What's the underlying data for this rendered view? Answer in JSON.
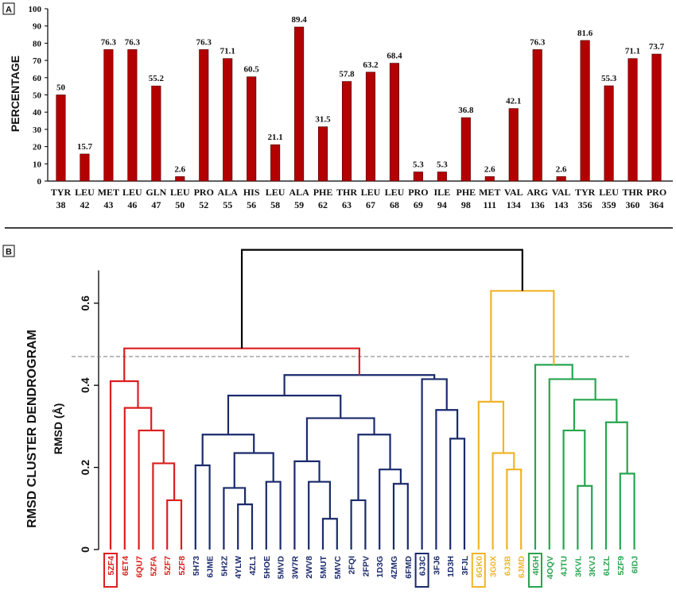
{
  "chart_data": [
    {
      "panel": "A",
      "type": "bar",
      "ylabel": "PERCENTAGE",
      "ylim": [
        0,
        100
      ],
      "yticks": [
        0,
        10,
        20,
        30,
        40,
        50,
        60,
        70,
        80,
        90,
        100
      ],
      "bar_color": "#b30000",
      "categories": [
        {
          "res": "TYR",
          "num": "38"
        },
        {
          "res": "LEU",
          "num": "42"
        },
        {
          "res": "MET",
          "num": "43"
        },
        {
          "res": "LEU",
          "num": "46"
        },
        {
          "res": "GLN",
          "num": "47"
        },
        {
          "res": "LEU",
          "num": "50"
        },
        {
          "res": "PRO",
          "num": "52"
        },
        {
          "res": "ALA",
          "num": "55"
        },
        {
          "res": "HIS",
          "num": "56"
        },
        {
          "res": "LEU",
          "num": "58"
        },
        {
          "res": "ALA",
          "num": "59"
        },
        {
          "res": "PHE",
          "num": "62"
        },
        {
          "res": "THR",
          "num": "63"
        },
        {
          "res": "LEU",
          "num": "67"
        },
        {
          "res": "LEU",
          "num": "68"
        },
        {
          "res": "PRO",
          "num": "69"
        },
        {
          "res": "ILE",
          "num": "94"
        },
        {
          "res": "PHE",
          "num": "98"
        },
        {
          "res": "MET",
          "num": "111"
        },
        {
          "res": "VAL",
          "num": "134"
        },
        {
          "res": "ARG",
          "num": "136"
        },
        {
          "res": "VAL",
          "num": "143"
        },
        {
          "res": "TYR",
          "num": "356"
        },
        {
          "res": "LEU",
          "num": "359"
        },
        {
          "res": "THR",
          "num": "360"
        },
        {
          "res": "PRO",
          "num": "364"
        }
      ],
      "values": [
        50,
        15.7,
        76.3,
        76.3,
        55.2,
        2.6,
        76.3,
        71.1,
        60.5,
        21.1,
        89.4,
        31.5,
        57.8,
        63.2,
        68.4,
        5.3,
        5.3,
        36.8,
        2.6,
        42.1,
        76.3,
        2.6,
        81.6,
        55.3,
        71.1,
        73.7
      ],
      "value_labels": [
        "50",
        "15.7",
        "76.3",
        "76.3",
        "55.2",
        "2.6",
        "76.3",
        "71.1",
        "60.5",
        "21.1",
        "89.4",
        "31.5",
        "57.8",
        "63.2",
        "68.4",
        "5.3",
        "5.3",
        "36.8",
        "2.6",
        "42.1",
        "76.3",
        "2.6",
        "81.6",
        "55.3",
        "71.1",
        "73.7"
      ]
    },
    {
      "panel": "B",
      "type": "dendrogram",
      "ylabel": "RMSD CLUSTER DENDROGRAM",
      "ylabel2": "RMSD (Å)",
      "ylim": [
        0,
        0.7
      ],
      "yticks": [
        0,
        0.2,
        0.4,
        0.6
      ],
      "ytick_labels": [
        "0",
        "0.2",
        "0.4",
        "0.6"
      ],
      "cutoff": 0.47,
      "colors": {
        "red": "#dc1e1e",
        "blue": "#1a2a6c",
        "yellow": "#f0b428",
        "green": "#28a550",
        "black": "#000000"
      },
      "leaves": [
        {
          "id": "5ZF4",
          "color": "red",
          "boxed": true
        },
        {
          "id": "6ET4",
          "color": "red"
        },
        {
          "id": "6QU7",
          "color": "red"
        },
        {
          "id": "5ZFA",
          "color": "red"
        },
        {
          "id": "5ZF7",
          "color": "red"
        },
        {
          "id": "5ZF8",
          "color": "red"
        },
        {
          "id": "5H73",
          "color": "blue"
        },
        {
          "id": "6JME",
          "color": "blue"
        },
        {
          "id": "5H2Z",
          "color": "blue"
        },
        {
          "id": "4YLW",
          "color": "blue"
        },
        {
          "id": "4ZL1",
          "color": "blue"
        },
        {
          "id": "5HOE",
          "color": "blue"
        },
        {
          "id": "5MVD",
          "color": "blue"
        },
        {
          "id": "3W7R",
          "color": "blue"
        },
        {
          "id": "2WV8",
          "color": "blue"
        },
        {
          "id": "5MUT",
          "color": "blue"
        },
        {
          "id": "5MVC",
          "color": "blue"
        },
        {
          "id": "2FQI",
          "color": "blue"
        },
        {
          "id": "2FPV",
          "color": "blue"
        },
        {
          "id": "1D3G",
          "color": "blue"
        },
        {
          "id": "4ZMG",
          "color": "blue"
        },
        {
          "id": "6FMD",
          "color": "blue"
        },
        {
          "id": "6J3C",
          "color": "blue",
          "boxed": true
        },
        {
          "id": "3FJ6",
          "color": "blue"
        },
        {
          "id": "1D3H",
          "color": "blue"
        },
        {
          "id": "3FJL",
          "color": "blue"
        },
        {
          "id": "6GK0",
          "color": "yellow",
          "boxed": true
        },
        {
          "id": "3G0X",
          "color": "yellow"
        },
        {
          "id": "6J3B",
          "color": "yellow"
        },
        {
          "id": "6JMD",
          "color": "yellow"
        },
        {
          "id": "4IGH",
          "color": "green",
          "boxed": true
        },
        {
          "id": "4OQV",
          "color": "green"
        },
        {
          "id": "4JTU",
          "color": "green"
        },
        {
          "id": "3KVL",
          "color": "green"
        },
        {
          "id": "3KVJ",
          "color": "green"
        },
        {
          "id": "6LZL",
          "color": "green"
        },
        {
          "id": "5ZF9",
          "color": "green"
        },
        {
          "id": "6IDJ",
          "color": "green"
        }
      ],
      "merges": [
        {
          "a": 4,
          "b": 5,
          "h": 0.12,
          "color": "red"
        },
        {
          "a": 3,
          "b": "n0",
          "h": 0.21,
          "color": "red"
        },
        {
          "a": 2,
          "b": "n1",
          "h": 0.29,
          "color": "red"
        },
        {
          "a": 1,
          "b": "n2",
          "h": 0.345,
          "color": "red"
        },
        {
          "a": 0,
          "b": "n3",
          "h": 0.41,
          "color": "red"
        },
        {
          "a": 9,
          "b": 10,
          "h": 0.11,
          "color": "blue"
        },
        {
          "a": 8,
          "b": "n5",
          "h": 0.15,
          "color": "blue"
        },
        {
          "a": 6,
          "b": 7,
          "h": 0.205,
          "color": "blue"
        },
        {
          "a": 11,
          "b": 12,
          "h": 0.165,
          "color": "blue"
        },
        {
          "a": "n6",
          "b": "n8",
          "h": 0.235,
          "color": "blue"
        },
        {
          "a": "n7",
          "b": "n9",
          "h": 0.28,
          "color": "blue"
        },
        {
          "a": 15,
          "b": 16,
          "h": 0.075,
          "color": "blue"
        },
        {
          "a": 14,
          "b": "n11",
          "h": 0.165,
          "color": "blue"
        },
        {
          "a": 13,
          "b": "n12",
          "h": 0.215,
          "color": "blue"
        },
        {
          "a": 20,
          "b": 21,
          "h": 0.16,
          "color": "blue"
        },
        {
          "a": 19,
          "b": "n14",
          "h": 0.195,
          "color": "blue"
        },
        {
          "a": 17,
          "b": 18,
          "h": 0.12,
          "color": "blue"
        },
        {
          "a": "n16",
          "b": "n15",
          "h": 0.28,
          "color": "blue"
        },
        {
          "a": "n13",
          "b": "n17",
          "h": 0.32,
          "color": "blue"
        },
        {
          "a": "n10",
          "b": "n18",
          "h": 0.375,
          "color": "blue"
        },
        {
          "a": 24,
          "b": 25,
          "h": 0.27,
          "color": "blue"
        },
        {
          "a": 23,
          "b": "n20",
          "h": 0.34,
          "color": "blue"
        },
        {
          "a": 22,
          "b": "n21",
          "h": 0.415,
          "color": "blue"
        },
        {
          "a": "n19",
          "b": "n22",
          "h": 0.425,
          "color": "blue"
        },
        {
          "a": 28,
          "b": 29,
          "h": 0.195,
          "color": "yellow"
        },
        {
          "a": 27,
          "b": "n24",
          "h": 0.235,
          "color": "yellow"
        },
        {
          "a": 26,
          "b": "n25",
          "h": 0.36,
          "color": "yellow"
        },
        {
          "a": 33,
          "b": 34,
          "h": 0.155,
          "color": "green"
        },
        {
          "a": 32,
          "b": "n27",
          "h": 0.29,
          "color": "green"
        },
        {
          "a": 36,
          "b": 37,
          "h": 0.185,
          "color": "green"
        },
        {
          "a": 35,
          "b": "n29",
          "h": 0.31,
          "color": "green"
        },
        {
          "a": "n28",
          "b": "n30",
          "h": 0.365,
          "color": "green"
        },
        {
          "a": 31,
          "b": "n31",
          "h": 0.415,
          "color": "green"
        },
        {
          "a": 30,
          "b": "n32",
          "h": 0.45,
          "color": "green"
        },
        {
          "a": "n4",
          "b": "n23",
          "h": 0.49,
          "color": "red"
        },
        {
          "a": "n26",
          "b": "n33",
          "h": 0.63,
          "color": "yellow"
        },
        {
          "a": "n34",
          "b": "n35",
          "h": 0.73,
          "color": "black"
        }
      ]
    }
  ]
}
